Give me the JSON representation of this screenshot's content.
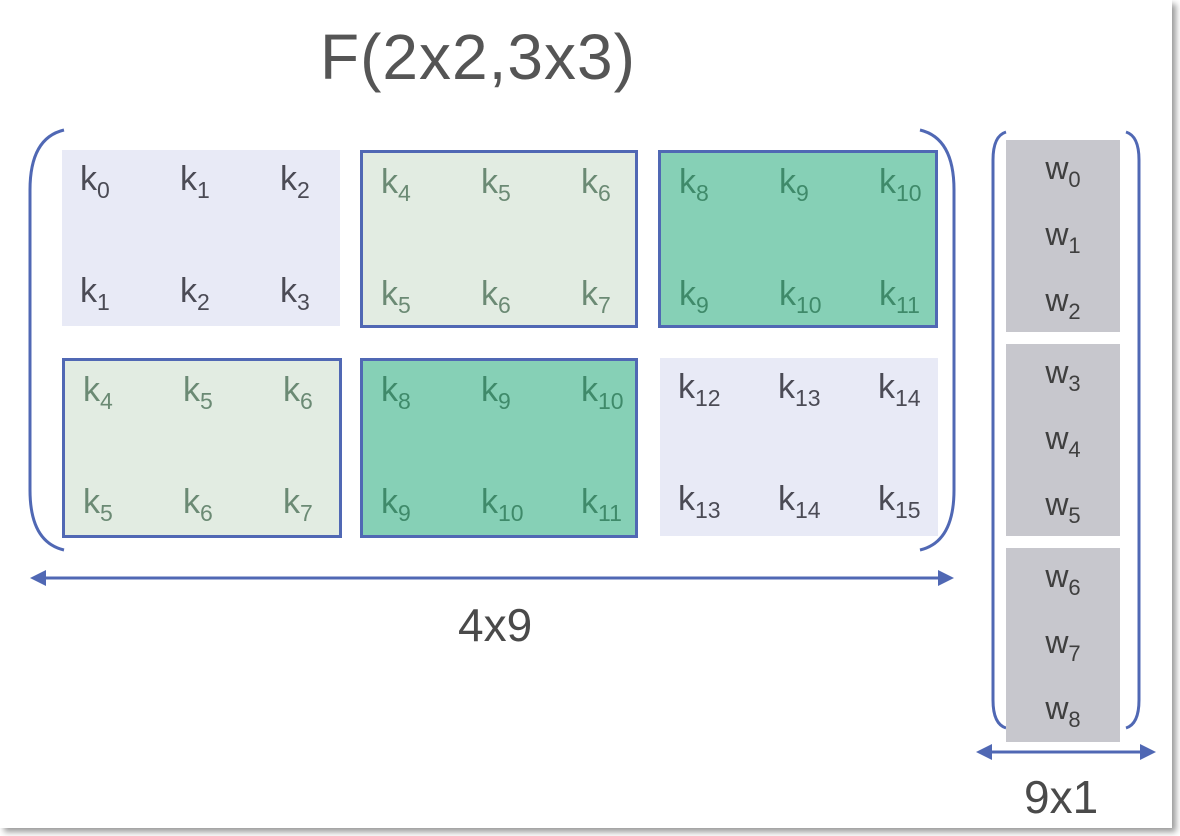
{
  "title": "F(2x2,3x3)",
  "matrix_dimension_label": "4x9",
  "vector_dimension_label": "9x1",
  "accent_colors": {
    "border_blue": "#5068b4",
    "light_fill": "#e8eaf6",
    "pale_green_fill": "#e2ece2",
    "green_fill": "#86d0b6",
    "gray_fill": "#c7c7cd"
  },
  "matrix_blocks": [
    {
      "style": "light",
      "rows": [
        [
          "k",
          "0",
          "k",
          "1",
          "k",
          "2"
        ],
        [
          "k",
          "1",
          "k",
          "2",
          "k",
          "3"
        ]
      ]
    },
    {
      "style": "pale",
      "rows": [
        [
          "k",
          "4",
          "k",
          "5",
          "k",
          "6"
        ],
        [
          "k",
          "5",
          "k",
          "6",
          "k",
          "7"
        ]
      ]
    },
    {
      "style": "green",
      "rows": [
        [
          "k",
          "8",
          "k",
          "9",
          "k",
          "10"
        ],
        [
          "k",
          "9",
          "k",
          "10",
          "k",
          "11"
        ]
      ]
    },
    {
      "style": "pale",
      "rows": [
        [
          "k",
          "4",
          "k",
          "5",
          "k",
          "6"
        ],
        [
          "k",
          "5",
          "k",
          "6",
          "k",
          "7"
        ]
      ]
    },
    {
      "style": "green",
      "rows": [
        [
          "k",
          "8",
          "k",
          "9",
          "k",
          "10"
        ],
        [
          "k",
          "9",
          "k",
          "10",
          "k",
          "11"
        ]
      ]
    },
    {
      "style": "light",
      "rows": [
        [
          "k",
          "12",
          "k",
          "13",
          "k",
          "14"
        ],
        [
          "k",
          "13",
          "k",
          "14",
          "k",
          "15"
        ]
      ]
    }
  ],
  "vector_groups": [
    {
      "cells": [
        [
          "w",
          "0"
        ],
        [
          "w",
          "1"
        ],
        [
          "w",
          "2"
        ]
      ]
    },
    {
      "cells": [
        [
          "w",
          "3"
        ],
        [
          "w",
          "4"
        ],
        [
          "w",
          "5"
        ]
      ]
    },
    {
      "cells": [
        [
          "w",
          "6"
        ],
        [
          "w",
          "7"
        ],
        [
          "w",
          "8"
        ]
      ]
    }
  ]
}
